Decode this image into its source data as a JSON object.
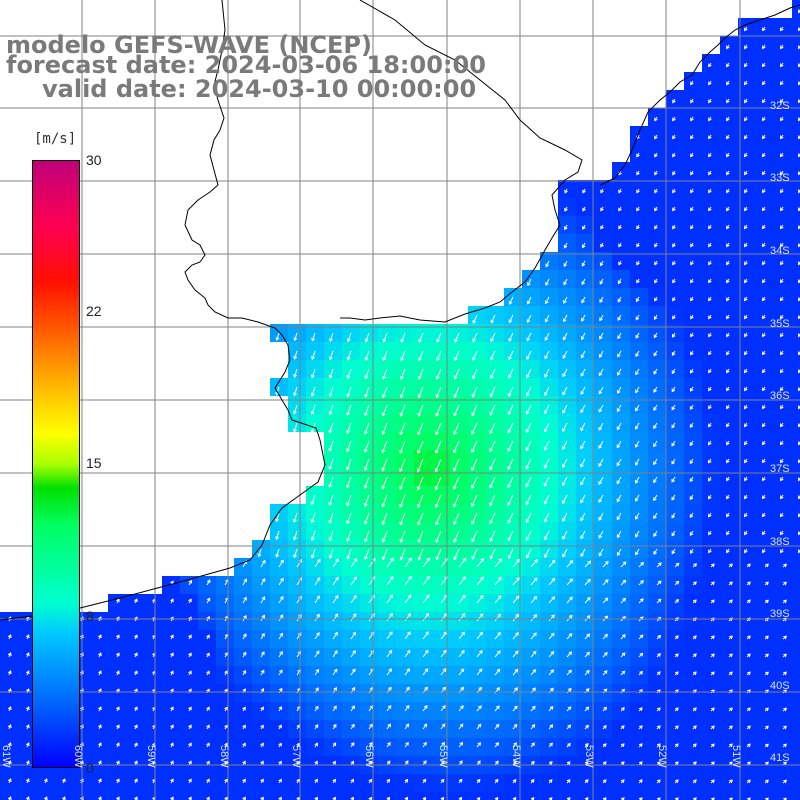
{
  "title": {
    "line1": "modelo GEFS-WAVE (NCEP)",
    "line2": "forecast date: 2024-03-06 18:00:00",
    "line3": "valid date: 2024-03-10 00:00:00"
  },
  "colorbar": {
    "unit": "[m/s]",
    "ticks": [
      "30",
      "22",
      "15",
      "8",
      "0"
    ],
    "min": 0,
    "max": 30
  },
  "lat_labels": [
    "32S",
    "33S",
    "34S",
    "35S",
    "36S",
    "37S",
    "38S",
    "39S",
    "40S",
    "41S"
  ],
  "lon_labels": [
    "61W",
    "60W",
    "59W",
    "58W",
    "57W",
    "56W",
    "55W",
    "54W",
    "53W",
    "52W",
    "51W"
  ],
  "map": {
    "land_color": "#ffffff",
    "coast_color": "#000000",
    "grid_color": "#808080",
    "vector_color": "#ffffff",
    "field_variable": "wind speed"
  }
}
